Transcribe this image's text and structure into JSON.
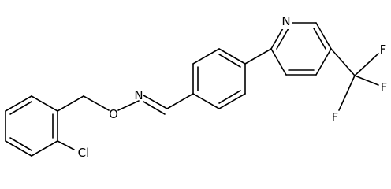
{
  "atoms": [
    {
      "label": "N"
    },
    {
      "label": "F"
    },
    {
      "label": "F"
    },
    {
      "label": "F"
    },
    {
      "label": "N"
    },
    {
      "label": "O"
    },
    {
      "label": "Cl"
    }
  ]
}
